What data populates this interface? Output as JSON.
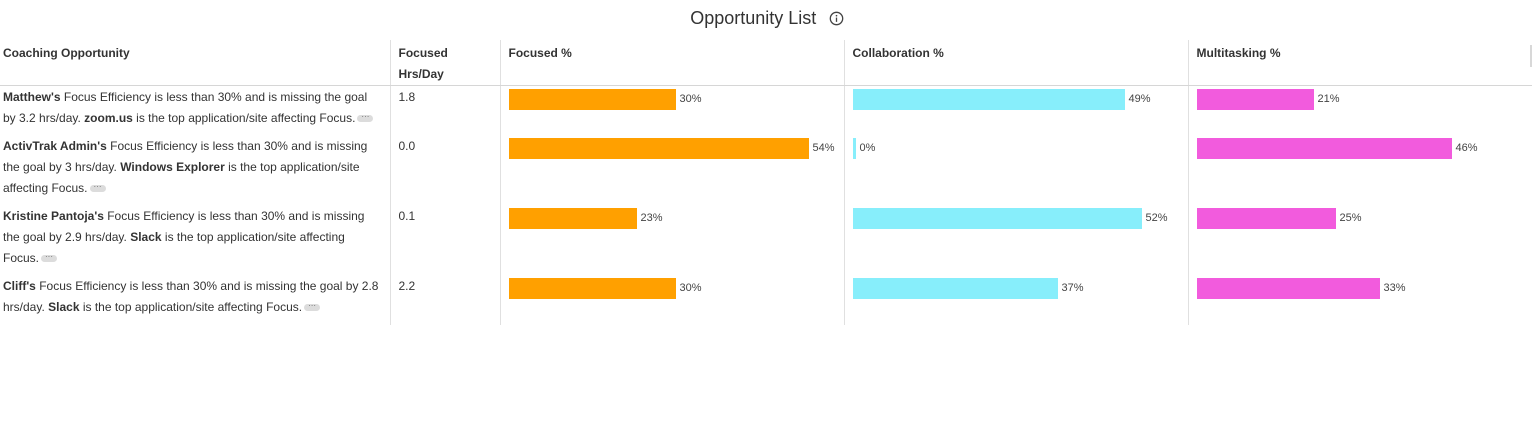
{
  "title": "Opportunity List",
  "columns": {
    "coaching": "Coaching Opportunity",
    "focused_hrs_line1": "Focused",
    "focused_hrs_line2": "Hrs/Day",
    "focused_pct": "Focused %",
    "collab_pct": "Collaboration %",
    "multi_pct": "Multitasking %"
  },
  "colors": {
    "focused": "#FFA000",
    "collab": "#87EEFB",
    "multi": "#F25BDD"
  },
  "rows": [
    {
      "name": "Matthew's",
      "text1": " Focus Efficiency is less than 30% and is missing the goal by 3.2 hrs/day. ",
      "app": "zoom.us",
      "text2": " is the top application/site affecting Focus.",
      "hrs": "1.8",
      "focused": 30,
      "focused_label": "30%",
      "collab": 49,
      "collab_label": "49%",
      "multi": 21,
      "multi_label": "21%"
    },
    {
      "name": "ActivTrak Admin's",
      "text1": " Focus Efficiency is less than 30% and is missing the goal by 3 hrs/day. ",
      "app": "Windows Explorer",
      "text2": " is the top application/site affecting Focus.",
      "hrs": "0.0",
      "focused": 54,
      "focused_label": "54%",
      "collab": 0,
      "collab_label": "0%",
      "multi": 46,
      "multi_label": "46%"
    },
    {
      "name": "Kristine Pantoja's",
      "text1": " Focus Efficiency is less than 30% and is missing the goal by 2.9 hrs/day. ",
      "app": "Slack",
      "text2": " is the top application/site affecting Focus.",
      "hrs": "0.1",
      "focused": 23,
      "focused_label": "23%",
      "collab": 52,
      "collab_label": "52%",
      "multi": 25,
      "multi_label": "25%"
    },
    {
      "name": "Cliff's",
      "text1": " Focus Efficiency is less than 30% and is missing the goal by 2.8 hrs/day. ",
      "app": "Slack",
      "text2": " is the top application/site affecting Focus.",
      "hrs": "2.2",
      "focused": 30,
      "focused_label": "30%",
      "collab": 37,
      "collab_label": "37%",
      "multi": 33,
      "multi_label": "33%"
    }
  ]
}
